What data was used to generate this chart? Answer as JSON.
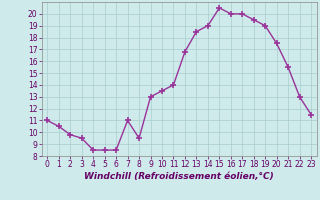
{
  "x": [
    0,
    1,
    2,
    3,
    4,
    5,
    6,
    7,
    8,
    9,
    10,
    11,
    12,
    13,
    14,
    15,
    16,
    17,
    18,
    19,
    20,
    21,
    22,
    23
  ],
  "y": [
    11.0,
    10.5,
    9.8,
    9.5,
    8.5,
    8.5,
    8.5,
    11.0,
    9.5,
    13.0,
    13.5,
    14.0,
    16.8,
    18.5,
    19.0,
    20.5,
    20.0,
    20.0,
    19.5,
    19.0,
    17.5,
    15.5,
    13.0,
    11.5
  ],
  "line_color": "#993399",
  "marker": "+",
  "marker_size": 4,
  "marker_linewidth": 1.2,
  "xlabel": "Windchill (Refroidissement éolien,°C)",
  "xlabel_fontsize": 6.5,
  "ylim": [
    8,
    21
  ],
  "xlim": [
    -0.5,
    23.5
  ],
  "yticks": [
    8,
    9,
    10,
    11,
    12,
    13,
    14,
    15,
    16,
    17,
    18,
    19,
    20
  ],
  "xticks": [
    0,
    1,
    2,
    3,
    4,
    5,
    6,
    7,
    8,
    9,
    10,
    11,
    12,
    13,
    14,
    15,
    16,
    17,
    18,
    19,
    20,
    21,
    22,
    23
  ],
  "tick_fontsize": 5.5,
  "bg_color": "#ceeaea",
  "grid_color": "#aacccc",
  "line_width": 1.0,
  "label_color": "#660066"
}
